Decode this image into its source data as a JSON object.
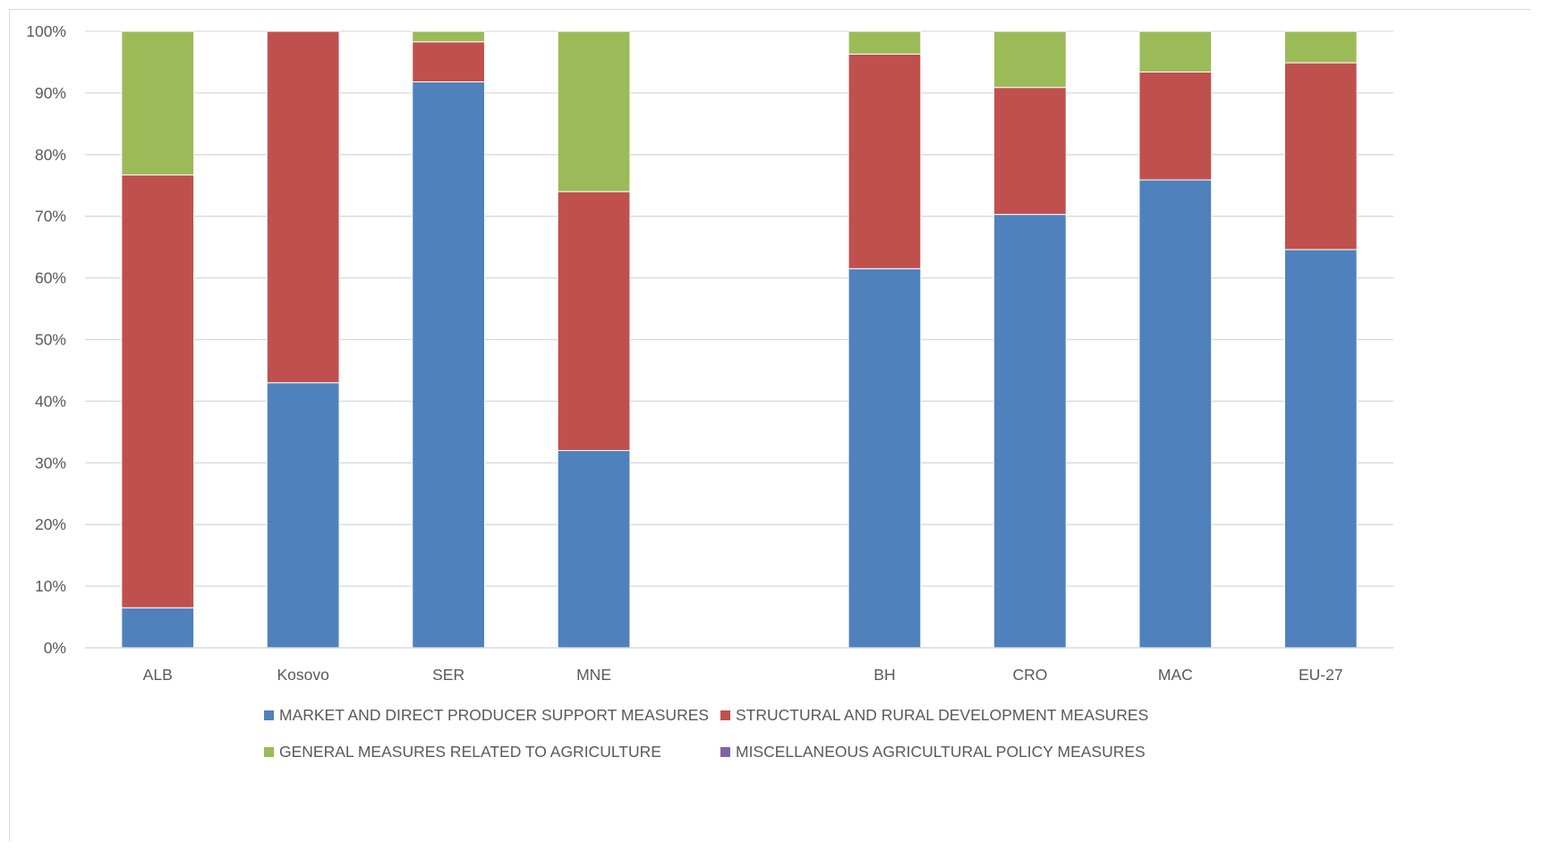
{
  "chart_data": {
    "type": "bar",
    "stacked": true,
    "percent": true,
    "categories": [
      "ALB",
      "Kosovo",
      "SER",
      "MNE",
      "",
      "BH",
      "CRO",
      "MAC",
      "EU-27"
    ],
    "series": [
      {
        "name": "MARKET AND DIRECT PRODUCER SUPPORT MEASURES",
        "color": "#4f81bd",
        "values": [
          6.5,
          43.0,
          91.8,
          32.0,
          null,
          61.5,
          70.3,
          75.9,
          64.6
        ]
      },
      {
        "name": "STRUCTURAL AND RURAL DEVELOPMENT MEASURES",
        "color": "#c0504d",
        "values": [
          70.2,
          57.0,
          6.5,
          42.0,
          null,
          34.8,
          20.6,
          17.5,
          30.3
        ]
      },
      {
        "name": "GENERAL MEASURES RELATED TO AGRICULTURE",
        "color": "#9bbb59",
        "values": [
          23.3,
          0.0,
          1.7,
          26.0,
          null,
          3.7,
          9.1,
          6.6,
          5.1
        ]
      },
      {
        "name": "MISCELLANEOUS AGRICULTURAL POLICY MEASURES",
        "color": "#8064a2",
        "values": [
          0,
          0,
          0,
          0,
          null,
          0,
          0,
          0,
          0
        ]
      }
    ],
    "ylim": [
      0,
      100
    ],
    "yticks": [
      "0%",
      "10%",
      "20%",
      "30%",
      "40%",
      "50%",
      "60%",
      "70%",
      "80%",
      "90%",
      "100%"
    ],
    "grid": true,
    "legend_position": "bottom"
  }
}
